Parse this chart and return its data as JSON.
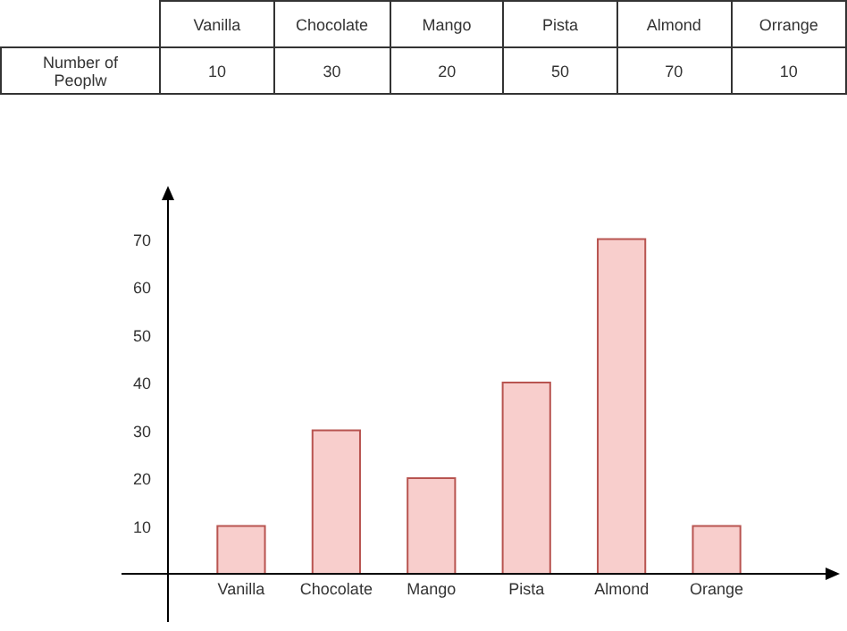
{
  "chart_data": {
    "type": "bar",
    "categories": [
      "Vanilla",
      "Chocolate",
      "Mango",
      "Pista",
      "Almond",
      "Orange"
    ],
    "values": [
      10,
      30,
      20,
      40,
      70,
      10
    ],
    "color": "#f8cecc",
    "ylim": [
      0,
      80
    ],
    "yticks": [
      10,
      20,
      30,
      40,
      50,
      60,
      70
    ],
    "annotations": [
      "Vanilla",
      "Chocolate",
      "Mango",
      "Pista",
      "Almond",
      "Orrange",
      "Number of Peoplw",
      "10",
      "30",
      "20",
      "50",
      "70",
      "10"
    ]
  }
}
